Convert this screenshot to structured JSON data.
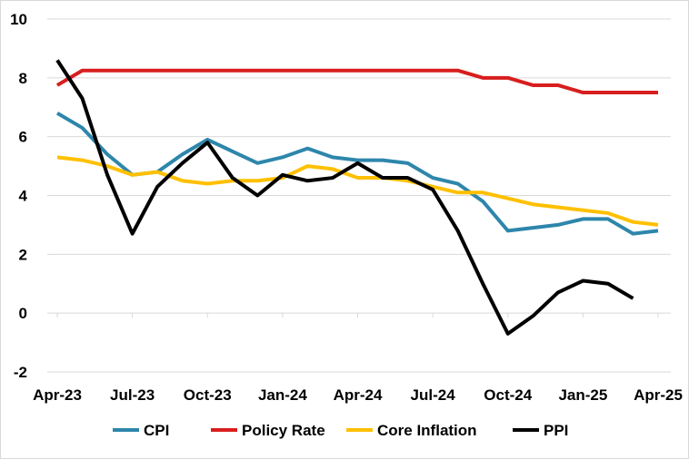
{
  "chart_data": {
    "type": "line",
    "title": "",
    "xlabel": "",
    "ylabel": "",
    "ylim": [
      -2,
      10
    ],
    "yticks": [
      10,
      8,
      6,
      4,
      2,
      0,
      -2
    ],
    "x_tick_labels": [
      "Apr-23",
      "Jul-23",
      "Oct-23",
      "Jan-24",
      "Apr-24",
      "Jul-24",
      "Oct-24",
      "Jan-25",
      "Apr-25"
    ],
    "grid": "horizontal",
    "legend_position": "bottom",
    "months": [
      "Apr-23",
      "May-23",
      "Jun-23",
      "Jul-23",
      "Aug-23",
      "Sep-23",
      "Oct-23",
      "Nov-23",
      "Dec-23",
      "Jan-24",
      "Feb-24",
      "Mar-24",
      "Apr-24",
      "May-24",
      "Jun-24",
      "Jul-24",
      "Aug-24",
      "Sep-24",
      "Oct-24",
      "Nov-24",
      "Dec-24",
      "Jan-25",
      "Feb-25",
      "Mar-25",
      "Apr-25"
    ],
    "series": [
      {
        "name": "CPI",
        "color": "#2E86AB",
        "values": [
          6.8,
          6.3,
          5.4,
          4.7,
          4.8,
          5.4,
          5.9,
          5.5,
          5.1,
          5.3,
          5.6,
          5.3,
          5.2,
          5.2,
          5.1,
          4.6,
          4.4,
          3.8,
          2.8,
          2.9,
          3.0,
          3.2,
          3.2,
          2.7,
          2.8
        ]
      },
      {
        "name": "Policy Rate",
        "color": "#D81E1E",
        "values": [
          7.75,
          8.25,
          8.25,
          8.25,
          8.25,
          8.25,
          8.25,
          8.25,
          8.25,
          8.25,
          8.25,
          8.25,
          8.25,
          8.25,
          8.25,
          8.25,
          8.25,
          8.0,
          8.0,
          7.75,
          7.75,
          7.5,
          7.5,
          7.5,
          7.5
        ]
      },
      {
        "name": "Core Inflation",
        "color": "#FFC000",
        "values": [
          5.3,
          5.2,
          5.0,
          4.7,
          4.8,
          4.5,
          4.4,
          4.5,
          4.5,
          4.6,
          5.0,
          4.9,
          4.6,
          4.6,
          4.5,
          4.3,
          4.1,
          4.1,
          3.9,
          3.7,
          3.6,
          3.5,
          3.4,
          3.1,
          3.0
        ]
      },
      {
        "name": "PPI",
        "color": "#000000",
        "values": [
          8.6,
          7.3,
          4.7,
          2.7,
          4.3,
          5.1,
          5.8,
          4.6,
          4.0,
          4.7,
          4.5,
          4.6,
          5.1,
          4.6,
          4.6,
          4.2,
          2.8,
          1.0,
          -0.7,
          -0.1,
          0.7,
          1.1,
          1.0,
          0.5,
          null
        ]
      }
    ]
  }
}
